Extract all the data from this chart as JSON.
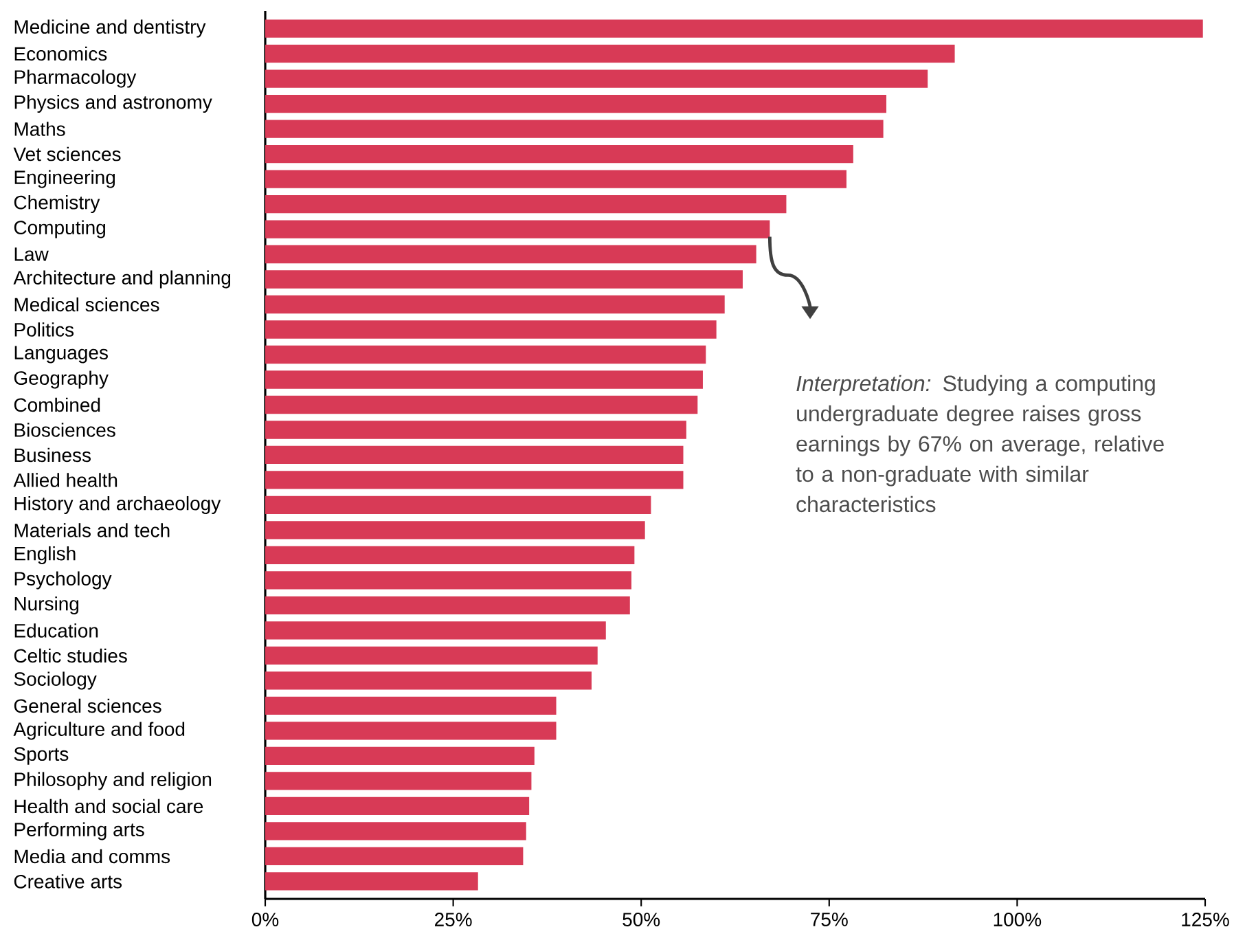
{
  "chart_data": {
    "type": "bar",
    "orientation": "horizontal",
    "color": "#d83a56",
    "categories": [
      "Medicine and dentistry",
      "Economics",
      "Pharmacology",
      "Physics and astronomy",
      "Maths",
      "Vet sciences",
      "Engineering",
      "Chemistry",
      "Computing",
      "Law",
      "Architecture and planning",
      "Medical sciences",
      "Politics",
      "Languages",
      "Geography",
      "Combined",
      "Biosciences",
      "Business",
      "Allied health",
      "History and archaeology",
      "Materials and tech",
      "English",
      "Psychology",
      "Nursing",
      "Education",
      "Celtic studies",
      "Sociology",
      "General sciences",
      "Agriculture and food",
      "Sports",
      "Philosophy and religion",
      "Health and social care",
      "Performing arts",
      "Media and comms",
      "Creative arts"
    ],
    "values": [
      124.7,
      91.7,
      88.1,
      82.6,
      82.2,
      78.2,
      77.3,
      69.3,
      67.1,
      65.3,
      63.5,
      61.1,
      60.0,
      58.6,
      58.2,
      57.5,
      56.0,
      55.6,
      55.6,
      51.3,
      50.5,
      49.1,
      48.7,
      48.5,
      45.3,
      44.2,
      43.4,
      38.7,
      38.7,
      35.8,
      35.4,
      35.1,
      34.7,
      34.3,
      28.3
    ],
    "xlim": [
      0,
      125
    ],
    "xticks": [
      {
        "value": 0,
        "label": "0%"
      },
      {
        "value": 25,
        "label": "25%"
      },
      {
        "value": 50,
        "label": "50%"
      },
      {
        "value": 75,
        "label": "75%"
      },
      {
        "value": 100,
        "label": "100%"
      },
      {
        "value": 125,
        "label": "125%"
      }
    ],
    "annotations": [
      "*Interpretation:*  Studying a computing undergraduate degree raises gross earnings by 67% on average, relative to a non-graduate with similar characteristics"
    ]
  }
}
